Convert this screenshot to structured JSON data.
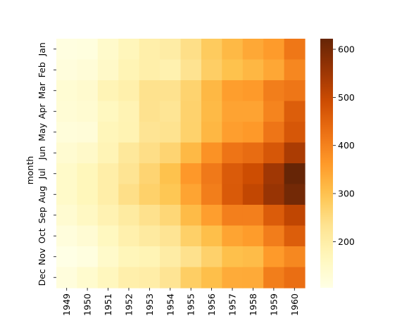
{
  "chart_data": {
    "type": "heatmap",
    "title": "",
    "xlabel": "",
    "ylabel": "month",
    "x_categories": [
      "1949",
      "1950",
      "1951",
      "1952",
      "1953",
      "1954",
      "1955",
      "1956",
      "1957",
      "1958",
      "1959",
      "1960"
    ],
    "y_tick_labels": [
      "Jan",
      "Feb",
      "Mar",
      "Apr",
      "May",
      "Jun",
      "Jul",
      "Aug",
      "Sep",
      "Oct",
      "Nov",
      "Dec"
    ],
    "y_categories": [
      "Jan",
      "Feb",
      "Mar",
      "Apr",
      "May",
      "Jun",
      "Jul",
      "Aug",
      "Sep",
      "Oct",
      "Nov",
      "Dec"
    ],
    "values": [
      [
        112,
        115,
        145,
        171,
        196,
        204,
        242,
        284,
        315,
        340,
        360,
        417
      ],
      [
        118,
        126,
        150,
        180,
        196,
        188,
        233,
        277,
        301,
        318,
        342,
        391
      ],
      [
        132,
        141,
        178,
        193,
        236,
        235,
        267,
        317,
        356,
        362,
        406,
        419
      ],
      [
        129,
        135,
        163,
        181,
        235,
        227,
        269,
        313,
        348,
        348,
        396,
        461
      ],
      [
        121,
        125,
        172,
        183,
        229,
        234,
        270,
        318,
        355,
        363,
        420,
        472
      ],
      [
        135,
        149,
        178,
        218,
        243,
        264,
        315,
        374,
        422,
        435,
        472,
        535
      ],
      [
        148,
        170,
        199,
        230,
        264,
        302,
        364,
        413,
        465,
        491,
        548,
        622
      ],
      [
        148,
        170,
        199,
        242,
        272,
        293,
        347,
        405,
        467,
        505,
        559,
        606
      ],
      [
        136,
        158,
        184,
        209,
        237,
        259,
        312,
        355,
        404,
        404,
        463,
        508
      ],
      [
        119,
        133,
        162,
        191,
        211,
        229,
        274,
        306,
        347,
        359,
        407,
        461
      ],
      [
        104,
        114,
        146,
        172,
        180,
        203,
        237,
        271,
        305,
        310,
        362,
        390
      ],
      [
        118,
        140,
        166,
        194,
        201,
        229,
        278,
        306,
        336,
        337,
        405,
        432
      ]
    ],
    "colorbar": {
      "colormap": "YlOrBr",
      "range": [
        104,
        622
      ],
      "ticks": [
        200,
        300,
        400,
        500,
        600
      ]
    },
    "legend": "colorbar-right",
    "grid": false
  }
}
